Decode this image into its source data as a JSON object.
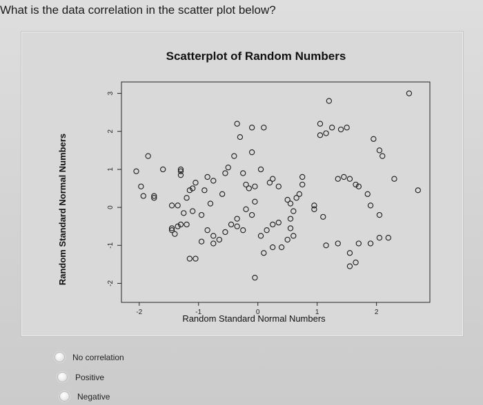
{
  "question": "What is the data correlation in the scatter plot below?",
  "chart_data": {
    "type": "scatter",
    "title": "Scatterplot of Random Numbers",
    "xlabel": "Random Standard Normal Numbers",
    "ylabel": "Random Standard Normal Numbers",
    "xlim": [
      -2.3,
      2.9
    ],
    "ylim": [
      -2.5,
      3.3
    ],
    "xticks": [
      -2,
      -1,
      0,
      1,
      2
    ],
    "yticks": [
      -2,
      -1,
      0,
      1,
      2,
      3
    ],
    "xtick_labels": [
      "-2",
      "-1",
      "0",
      "1",
      "2"
    ],
    "ytick_labels": [
      "-2",
      "-1",
      "0",
      "1",
      "2",
      "3"
    ],
    "marker": "open-circle",
    "grid": false,
    "points": [
      [
        -2.05,
        0.95
      ],
      [
        -1.85,
        1.35
      ],
      [
        -1.97,
        0.55
      ],
      [
        -1.93,
        0.3
      ],
      [
        -1.75,
        0.25
      ],
      [
        -1.75,
        0.3
      ],
      [
        -1.6,
        1.0
      ],
      [
        -1.45,
        0.05
      ],
      [
        -1.35,
        0.05
      ],
      [
        -1.3,
        0.85
      ],
      [
        -1.3,
        0.95
      ],
      [
        -1.3,
        1.0
      ],
      [
        -1.15,
        0.45
      ],
      [
        -1.2,
        0.25
      ],
      [
        -1.05,
        0.65
      ],
      [
        -1.1,
        0.5
      ],
      [
        -1.45,
        -0.55
      ],
      [
        -1.35,
        -0.5
      ],
      [
        -1.45,
        -0.6
      ],
      [
        -1.4,
        -0.7
      ],
      [
        -1.3,
        -0.45
      ],
      [
        -1.2,
        -0.45
      ],
      [
        -1.25,
        -0.15
      ],
      [
        -1.1,
        -0.1
      ],
      [
        -0.95,
        -0.2
      ],
      [
        -0.8,
        0.1
      ],
      [
        -0.9,
        0.45
      ],
      [
        -0.85,
        0.8
      ],
      [
        -0.75,
        0.7
      ],
      [
        -0.6,
        0.35
      ],
      [
        -0.55,
        0.9
      ],
      [
        -0.5,
        1.05
      ],
      [
        -0.95,
        -0.9
      ],
      [
        -1.05,
        -1.35
      ],
      [
        -1.15,
        -1.35
      ],
      [
        -0.85,
        -0.6
      ],
      [
        -0.75,
        -0.95
      ],
      [
        -0.75,
        -0.75
      ],
      [
        -0.65,
        -0.85
      ],
      [
        -0.55,
        -0.65
      ],
      [
        -0.45,
        -0.45
      ],
      [
        -0.35,
        -0.5
      ],
      [
        -0.35,
        -0.3
      ],
      [
        -0.25,
        -0.6
      ],
      [
        -0.2,
        -0.05
      ],
      [
        -0.1,
        -0.2
      ],
      [
        -0.05,
        0.15
      ],
      [
        -0.2,
        0.6
      ],
      [
        -0.05,
        0.55
      ],
      [
        -0.15,
        0.5
      ],
      [
        -0.25,
        0.9
      ],
      [
        -0.1,
        1.45
      ],
      [
        -0.4,
        1.35
      ],
      [
        -0.3,
        1.85
      ],
      [
        -0.35,
        2.2
      ],
      [
        -0.1,
        2.1
      ],
      [
        0.1,
        2.1
      ],
      [
        0.05,
        1.0
      ],
      [
        0.2,
        0.65
      ],
      [
        0.25,
        0.75
      ],
      [
        0.35,
        0.55
      ],
      [
        0.5,
        0.2
      ],
      [
        0.55,
        0.1
      ],
      [
        0.6,
        -0.1
      ],
      [
        0.55,
        -0.3
      ],
      [
        0.35,
        -0.4
      ],
      [
        0.25,
        -0.45
      ],
      [
        0.15,
        -0.6
      ],
      [
        0.05,
        -0.75
      ],
      [
        -0.05,
        -1.85
      ],
      [
        0.1,
        -1.2
      ],
      [
        0.25,
        -1.05
      ],
      [
        0.4,
        -1.05
      ],
      [
        0.55,
        -0.55
      ],
      [
        0.5,
        -0.85
      ],
      [
        0.6,
        -0.75
      ],
      [
        0.65,
        0.25
      ],
      [
        0.7,
        0.35
      ],
      [
        0.75,
        0.8
      ],
      [
        0.75,
        0.6
      ],
      [
        0.95,
        0.05
      ],
      [
        0.95,
        -0.05
      ],
      [
        1.1,
        -0.25
      ],
      [
        1.05,
        1.9
      ],
      [
        1.15,
        1.95
      ],
      [
        1.05,
        2.2
      ],
      [
        1.25,
        2.1
      ],
      [
        1.4,
        2.05
      ],
      [
        1.5,
        2.1
      ],
      [
        1.35,
        0.75
      ],
      [
        1.45,
        0.8
      ],
      [
        1.55,
        0.75
      ],
      [
        1.65,
        0.6
      ],
      [
        1.7,
        0.55
      ],
      [
        1.95,
        1.8
      ],
      [
        2.1,
        1.35
      ],
      [
        2.05,
        1.5
      ],
      [
        2.3,
        0.75
      ],
      [
        1.15,
        -1.0
      ],
      [
        1.35,
        -0.95
      ],
      [
        1.55,
        -1.2
      ],
      [
        1.55,
        -1.55
      ],
      [
        1.65,
        -1.45
      ],
      [
        1.7,
        -0.95
      ],
      [
        1.9,
        -0.95
      ],
      [
        2.05,
        -0.8
      ],
      [
        2.2,
        -0.8
      ],
      [
        1.85,
        0.35
      ],
      [
        1.9,
        0.05
      ],
      [
        2.05,
        -0.2
      ],
      [
        2.55,
        3.0
      ],
      [
        2.7,
        0.45
      ],
      [
        1.2,
        2.8
      ]
    ]
  },
  "answers": [
    {
      "label": "No correlation"
    },
    {
      "label": "Positive"
    },
    {
      "label": "Negative"
    }
  ]
}
